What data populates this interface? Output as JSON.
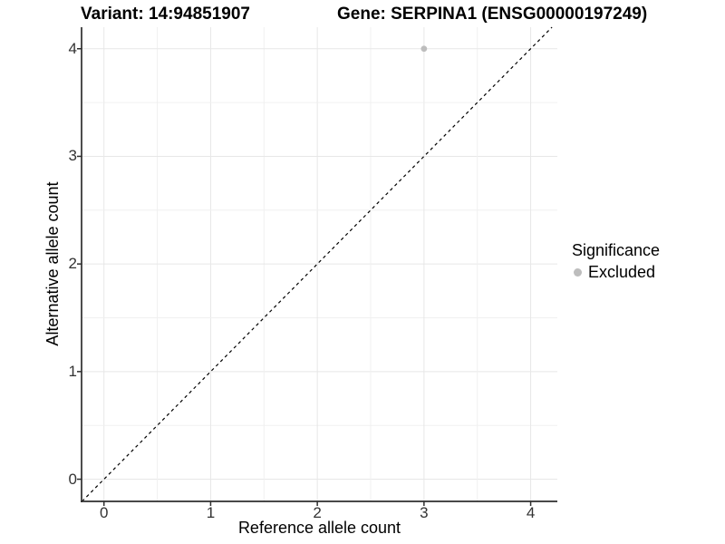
{
  "header": {
    "title_left": "Variant: 14:94851907",
    "title_right": "Gene: SERPINA1 (ENSG00000197249)"
  },
  "chart_data": {
    "type": "scatter",
    "xlabel": "Reference allele count",
    "ylabel": "Alternative allele count",
    "xlim": [
      -0.21,
      4.25
    ],
    "ylim": [
      -0.206,
      4.2
    ],
    "xticks": [
      0,
      1,
      2,
      3,
      4
    ],
    "yticks": [
      0,
      1,
      2,
      3,
      4
    ],
    "xtick_labels": [
      "0",
      "1",
      "2",
      "3",
      "4"
    ],
    "ytick_labels": [
      "0",
      "1",
      "2",
      "3",
      "4"
    ],
    "minor_step": 0.5,
    "grid": true,
    "series": [
      {
        "name": "Excluded",
        "color": "#bdbdbd",
        "points": [
          {
            "x": 3,
            "y": 4
          }
        ]
      }
    ],
    "reference_line": {
      "type": "identity",
      "style": "dashed",
      "color": "#000000"
    },
    "legend": {
      "title": "Significance",
      "position": "right",
      "items": [
        {
          "label": "Excluded",
          "color": "#bdbdbd"
        }
      ]
    }
  },
  "colors": {
    "axis_line": "#2e2e2e",
    "tick_mark": "#2e2e2e",
    "grid_major": "#e7e7e7",
    "grid_minor": "#f0f0f0",
    "panel_background": "#ffffff"
  }
}
